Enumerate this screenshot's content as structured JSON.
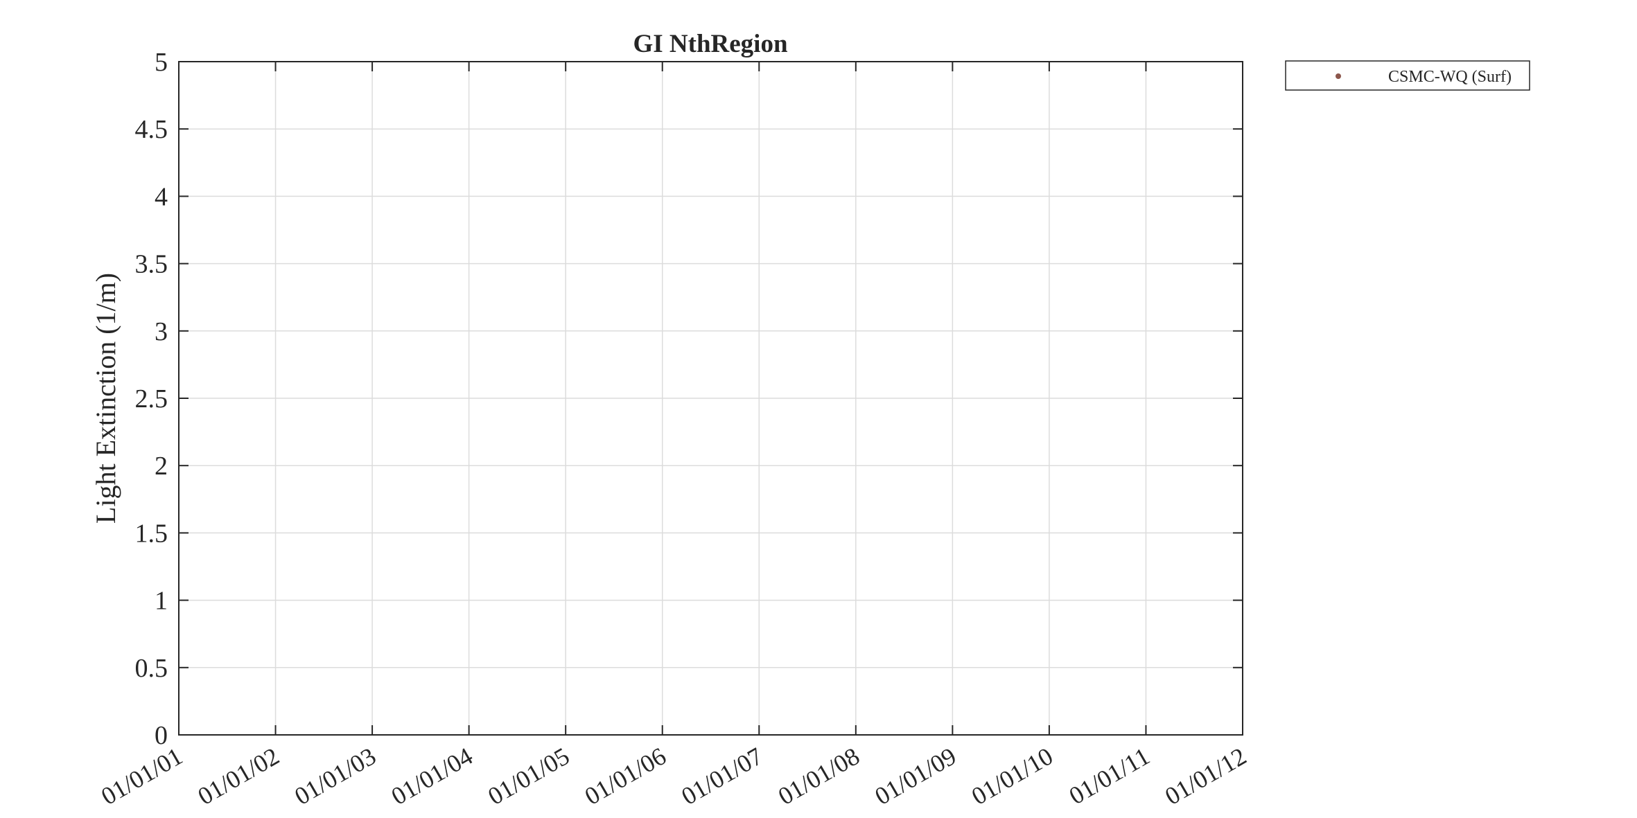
{
  "chart_data": {
    "type": "scatter",
    "title": "GI NthRegion",
    "xlabel": "",
    "ylabel": "Light Extinction (1/m)",
    "x_tick_labels": [
      "01/01/01",
      "01/01/02",
      "01/01/03",
      "01/01/04",
      "01/01/05",
      "01/01/06",
      "01/01/07",
      "01/01/08",
      "01/01/09",
      "01/01/10",
      "01/01/11",
      "01/01/12"
    ],
    "y_ticks": [
      0,
      0.5,
      1,
      1.5,
      2,
      2.5,
      3,
      3.5,
      4,
      4.5,
      5
    ],
    "y_tick_labels": [
      "0",
      "0.5",
      "1",
      "1.5",
      "2",
      "2.5",
      "3",
      "3.5",
      "4",
      "4.5",
      "5"
    ],
    "ylim": [
      0,
      5
    ],
    "grid": true,
    "legend_position": "outside-top-right",
    "series": [
      {
        "name": "CSMC-WQ (Surf)",
        "marker": "dot",
        "color": "#8c564b",
        "points": []
      }
    ]
  }
}
